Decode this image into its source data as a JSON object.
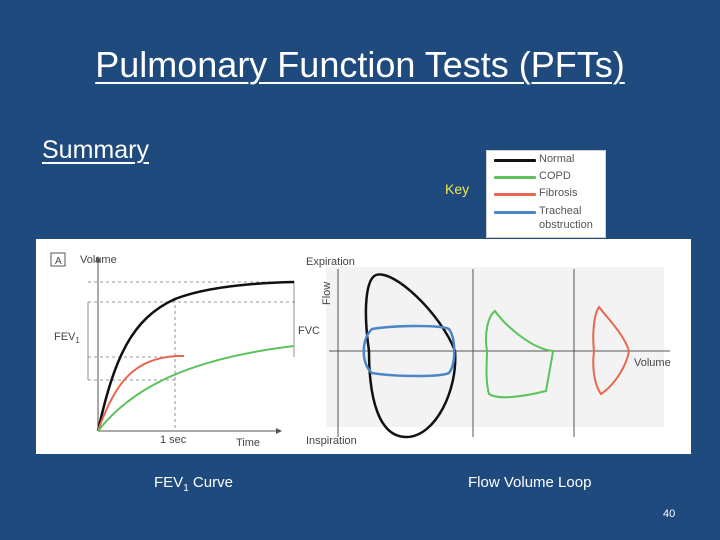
{
  "slide": {
    "title": "Pulmonary Function Tests (PFTs)",
    "subtitle": "Summary",
    "page_number": "40"
  },
  "key": {
    "label": "Key",
    "items": [
      {
        "label": "Normal",
        "color": "#111111"
      },
      {
        "label": "COPD",
        "color": "#5cc25c"
      },
      {
        "label": "Fibrosis",
        "color": "#e8684f"
      },
      {
        "label": "Tracheal",
        "color": "#4a86c8"
      },
      {
        "label": "obstruction",
        "color": "#4a86c8"
      }
    ]
  },
  "panel_a": {
    "panel_letter": "A",
    "y_label": "Volume",
    "fev1_label": "FEV",
    "fev1_sub": "1",
    "fvc_label": "FVC",
    "one_sec_label": "1 sec",
    "x_label": "Time"
  },
  "panel_b": {
    "top_label": "Expiration",
    "bottom_label": "Inspiration",
    "y_label": "Flow",
    "x_label": "Volume"
  },
  "captions": {
    "left_main": "FEV",
    "left_sub": "1",
    "left_rest": " Curve",
    "right": "Flow Volume Loop"
  }
}
